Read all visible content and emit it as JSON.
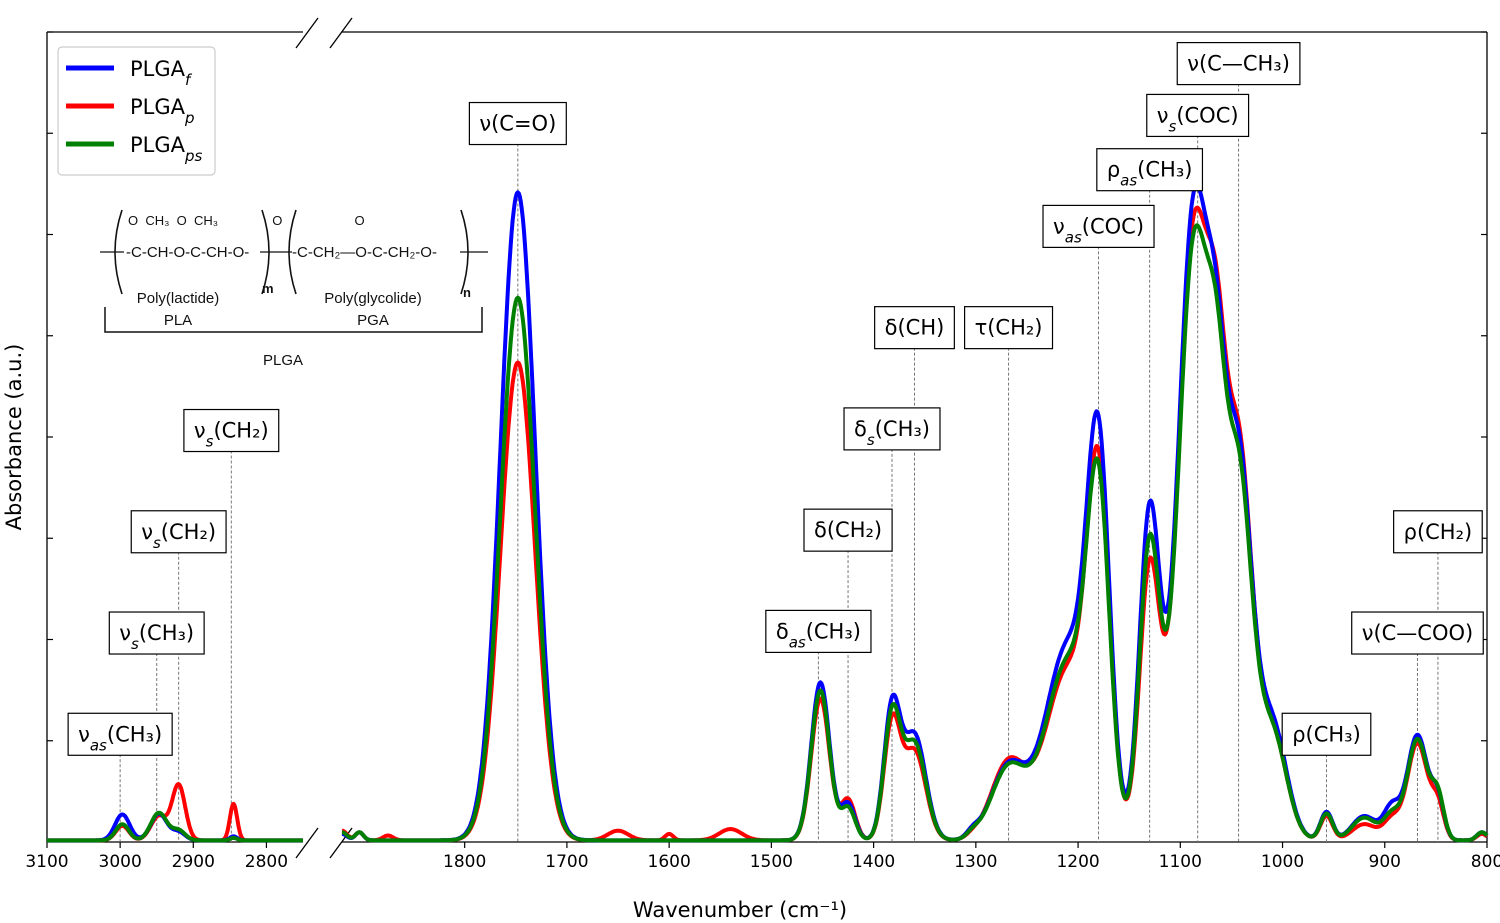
{
  "chart_data": {
    "type": "line",
    "xlabel": "Wavenumber (cm⁻¹)",
    "ylabel": "Absorbance (a.u.)",
    "x_reversed": true,
    "x_broken_axis": true,
    "x_segments": [
      {
        "xlim": [
          3100,
          2750
        ]
      },
      {
        "xlim": [
          1920,
          800
        ]
      }
    ],
    "ylim": [
      0,
      1
    ],
    "xticks": [
      {
        "value": 3100,
        "label": "3100"
      },
      {
        "value": 3000,
        "label": "3000"
      },
      {
        "value": 2900,
        "label": "2900"
      },
      {
        "value": 2800,
        "label": "2800"
      },
      {
        "value": 1800,
        "label": "1800"
      },
      {
        "value": 1700,
        "label": "1700"
      },
      {
        "value": 1600,
        "label": "1600"
      },
      {
        "value": 1500,
        "label": "1500"
      },
      {
        "value": 1400,
        "label": "1400"
      },
      {
        "value": 1300,
        "label": "1300"
      },
      {
        "value": 1200,
        "label": "1200"
      },
      {
        "value": 1100,
        "label": "1100"
      },
      {
        "value": 1000,
        "label": "1000"
      },
      {
        "value": 900,
        "label": "900"
      },
      {
        "value": 800,
        "label": "800"
      }
    ],
    "legend": {
      "position": "top-left"
    },
    "series": [
      {
        "name": "PLGA",
        "sub": "f",
        "color": "#0000ff",
        "peaks": [
          [
            2997,
            0.032,
            10
          ],
          [
            2947,
            0.033,
            11
          ],
          [
            2920,
            0.01,
            9
          ],
          [
            2845,
            0.005,
            5
          ],
          [
            1920,
            0.008,
            5
          ],
          [
            1903,
            0.01,
            4
          ],
          [
            1748,
            0.8,
            17
          ],
          [
            1452,
            0.195,
            9
          ],
          [
            1425,
            0.045,
            7
          ],
          [
            1382,
            0.16,
            8
          ],
          [
            1360,
            0.13,
            11
          ],
          [
            1303,
            0.008,
            6
          ],
          [
            1268,
            0.09,
            17
          ],
          [
            1210,
            0.24,
            22
          ],
          [
            1180,
            0.43,
            11
          ],
          [
            1130,
            0.4,
            10
          ],
          [
            1086,
            0.79,
            16
          ],
          [
            1064,
            0.26,
            9
          ],
          [
            1043,
            0.46,
            13
          ],
          [
            1010,
            0.14,
            14
          ],
          [
            957,
            0.035,
            6
          ],
          [
            920,
            0.03,
            12
          ],
          [
            893,
            0.04,
            8
          ],
          [
            868,
            0.13,
            10
          ],
          [
            848,
            0.048,
            6
          ],
          [
            805,
            0.01,
            5
          ]
        ]
      },
      {
        "name": "PLGA",
        "sub": "p",
        "color": "#ff0000",
        "peaks": [
          [
            2997,
            0.018,
            9
          ],
          [
            2947,
            0.03,
            11
          ],
          [
            2920,
            0.068,
            9
          ],
          [
            2845,
            0.045,
            5
          ],
          [
            1920,
            0.012,
            5
          ],
          [
            1903,
            0.01,
            4
          ],
          [
            1875,
            0.006,
            5
          ],
          [
            1748,
            0.59,
            17
          ],
          [
            1650,
            0.012,
            10
          ],
          [
            1600,
            0.008,
            4
          ],
          [
            1540,
            0.014,
            11
          ],
          [
            1452,
            0.175,
            9
          ],
          [
            1425,
            0.05,
            7
          ],
          [
            1382,
            0.14,
            8
          ],
          [
            1360,
            0.11,
            11
          ],
          [
            1303,
            0.004,
            6
          ],
          [
            1268,
            0.095,
            17
          ],
          [
            1210,
            0.21,
            22
          ],
          [
            1180,
            0.4,
            11
          ],
          [
            1130,
            0.33,
            10
          ],
          [
            1086,
            0.76,
            16
          ],
          [
            1064,
            0.28,
            9
          ],
          [
            1043,
            0.47,
            13
          ],
          [
            1010,
            0.13,
            14
          ],
          [
            957,
            0.03,
            6
          ],
          [
            920,
            0.02,
            12
          ],
          [
            893,
            0.025,
            8
          ],
          [
            868,
            0.12,
            10
          ],
          [
            848,
            0.04,
            6
          ],
          [
            805,
            0.008,
            5
          ]
        ]
      },
      {
        "name": "PLGA",
        "sub": "ps",
        "color": "#008000",
        "peaks": [
          [
            2997,
            0.02,
            9
          ],
          [
            2947,
            0.034,
            11
          ],
          [
            2920,
            0.012,
            9
          ],
          [
            2845,
            0.003,
            5
          ],
          [
            1920,
            0.01,
            5
          ],
          [
            1903,
            0.01,
            4
          ],
          [
            1748,
            0.67,
            17
          ],
          [
            1452,
            0.185,
            9
          ],
          [
            1425,
            0.04,
            7
          ],
          [
            1382,
            0.15,
            8
          ],
          [
            1360,
            0.12,
            11
          ],
          [
            1303,
            0.006,
            6
          ],
          [
            1268,
            0.088,
            17
          ],
          [
            1210,
            0.22,
            22
          ],
          [
            1180,
            0.38,
            11
          ],
          [
            1130,
            0.36,
            10
          ],
          [
            1086,
            0.74,
            16
          ],
          [
            1064,
            0.26,
            9
          ],
          [
            1043,
            0.44,
            13
          ],
          [
            1010,
            0.13,
            14
          ],
          [
            957,
            0.033,
            6
          ],
          [
            920,
            0.028,
            12
          ],
          [
            893,
            0.03,
            8
          ],
          [
            868,
            0.125,
            10
          ],
          [
            848,
            0.05,
            6
          ],
          [
            805,
            0.01,
            5
          ]
        ]
      }
    ],
    "annotations": [
      {
        "x": 3000,
        "label_y": 0.133,
        "pre": "ν",
        "sub": "as",
        "post": "(CH₃)"
      },
      {
        "x": 2950,
        "label_y": 0.258,
        "pre": "ν",
        "sub": "s",
        "post": "(CH₃)"
      },
      {
        "x": 2920,
        "label_y": 0.383,
        "pre": "ν",
        "sub": "s",
        "post": "(CH₂)"
      },
      {
        "x": 2848,
        "label_y": 0.508,
        "pre": "ν",
        "sub": "s",
        "post": "(CH₂)"
      },
      {
        "x": 1748,
        "label_y": 0.887,
        "pre": "ν(C=O)",
        "sub": "",
        "post": ""
      },
      {
        "x": 1454,
        "label_y": 0.26,
        "pre": "δ",
        "sub": "as",
        "post": "(CH₃)"
      },
      {
        "x": 1425,
        "label_y": 0.385,
        "pre": "δ(CH₂)",
        "sub": "",
        "post": ""
      },
      {
        "x": 1382,
        "label_y": 0.51,
        "pre": "δ",
        "sub": "s",
        "post": "(CH₃)"
      },
      {
        "x": 1360,
        "label_y": 0.635,
        "pre": "δ(CH)",
        "sub": "",
        "post": ""
      },
      {
        "x": 1268,
        "label_y": 0.635,
        "pre": "τ(CH₂)",
        "sub": "",
        "post": ""
      },
      {
        "x": 1180,
        "label_y": 0.76,
        "pre": "ν",
        "sub": "as",
        "post": "(COC)"
      },
      {
        "x": 1130,
        "label_y": 0.83,
        "pre": "ρ",
        "sub": "as",
        "post": "(CH₃)"
      },
      {
        "x": 1083,
        "label_y": 0.897,
        "pre": "ν",
        "sub": "s",
        "post": "(COC)"
      },
      {
        "x": 1043,
        "label_y": 0.961,
        "pre": "ν(C—CH₃)",
        "sub": "",
        "post": ""
      },
      {
        "x": 957,
        "label_y": 0.133,
        "pre": "ρ(CH₃)",
        "sub": "",
        "post": ""
      },
      {
        "x": 868,
        "label_y": 0.258,
        "pre": "ν(C—COO)",
        "sub": "",
        "post": ""
      },
      {
        "x": 848,
        "label_y": 0.383,
        "pre": "ρ(CH₂)",
        "sub": "",
        "post": ""
      }
    ]
  },
  "inset": {
    "top_row": "O  CH₃  O  CH₃               O                    O",
    "formula_left": "-C-CH-O-C-CH-O-",
    "formula_right": "-C-CH₂—O-C-CH₂-O-",
    "repeat_m": "m",
    "repeat_n": "n",
    "label_pla_name": "Poly(lactide)",
    "label_pla": "PLA",
    "label_pga_name": "Poly(glycolide)",
    "label_pga": "PGA",
    "label_plga": "PLGA"
  }
}
